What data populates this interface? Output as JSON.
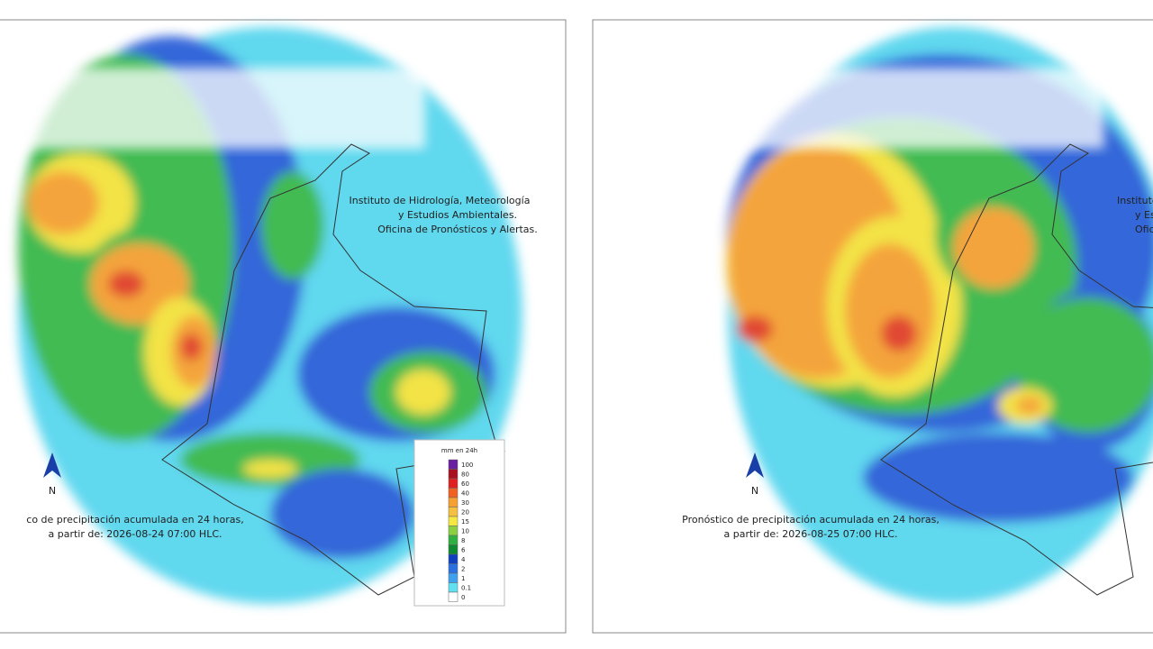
{
  "panels": [
    {
      "institution_lines": [
        "Instituto de Hidrología, Meteorología",
        "y Estudios Ambientales.",
        "Oficina de Pronósticos y Alertas."
      ],
      "caption_lines": [
        "co de precipitación acumulada en 24 horas,",
        "a partir de: 2026-08-24 07:00 HLC."
      ],
      "north": "N",
      "legend": {
        "title": "mm en 24h",
        "labels": [
          "100",
          "80",
          "60",
          "40",
          "30",
          "20",
          "15",
          "10",
          "8",
          "6",
          "4",
          "2",
          "1",
          "0.1",
          "0"
        ]
      }
    },
    {
      "institution_lines": [
        "Instituto de Hidrolo",
        "y Estudios Am",
        "Oficina de Pron"
      ],
      "caption_lines": [
        "Pronóstico de precipitación acumulada en 24 horas,",
        "a partir de: 2026-08-25 07:00 HLC."
      ],
      "north": "N"
    }
  ]
}
